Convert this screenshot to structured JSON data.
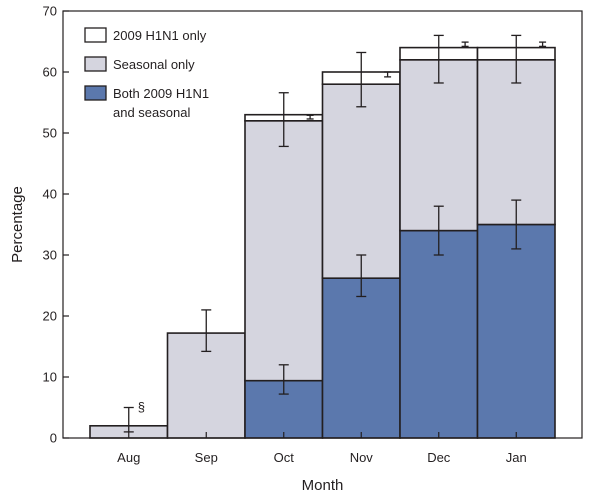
{
  "chart_data": {
    "type": "bar",
    "stacked": true,
    "title": "",
    "xlabel": "Month",
    "ylabel": "Percentage",
    "ylim": [
      0,
      70
    ],
    "yticks": [
      0,
      10,
      20,
      30,
      40,
      50,
      60,
      70
    ],
    "categories": [
      "Aug",
      "Sep",
      "Oct",
      "Nov",
      "Dec",
      "Jan"
    ],
    "grid": false,
    "legend_position": "top-left",
    "series": [
      {
        "name": "Both 2009 H1N1 and seasonal",
        "legend_lines": [
          "Both 2009 H1N1",
          "and seasonal"
        ],
        "color": "#5b78ad",
        "values": [
          0,
          0,
          9.4,
          26.2,
          34.0,
          35.0
        ],
        "error_low": [
          null,
          null,
          7.2,
          23.2,
          30.0,
          31.0
        ],
        "error_high": [
          null,
          null,
          12.0,
          30.0,
          38.0,
          39.0
        ]
      },
      {
        "name": "Seasonal only",
        "legend_lines": [
          "Seasonal only"
        ],
        "color": "#d5d5df",
        "values": [
          2.0,
          17.2,
          42.6,
          31.8,
          28.0,
          27.0
        ],
        "total_error_low": [
          1.0,
          14.2,
          47.8,
          54.3,
          58.2,
          58.2
        ],
        "total_error_high": [
          5.0,
          21.0,
          56.6,
          63.2,
          66.0,
          66.0
        ]
      },
      {
        "name": "2009 H1N1 only",
        "legend_lines": [
          "2009 H1N1 only"
        ],
        "color": "#ffffff",
        "values": [
          0,
          0,
          1.0,
          2.0,
          2.0,
          2.0
        ],
        "error_low": [
          null,
          null,
          52.3,
          59.2,
          64.2,
          64.2
        ],
        "error_high": [
          null,
          null,
          52.9,
          60.0,
          64.9,
          64.9
        ]
      }
    ],
    "annotations": [
      {
        "category": "Aug",
        "text": "§",
        "y": 5.0
      }
    ]
  }
}
